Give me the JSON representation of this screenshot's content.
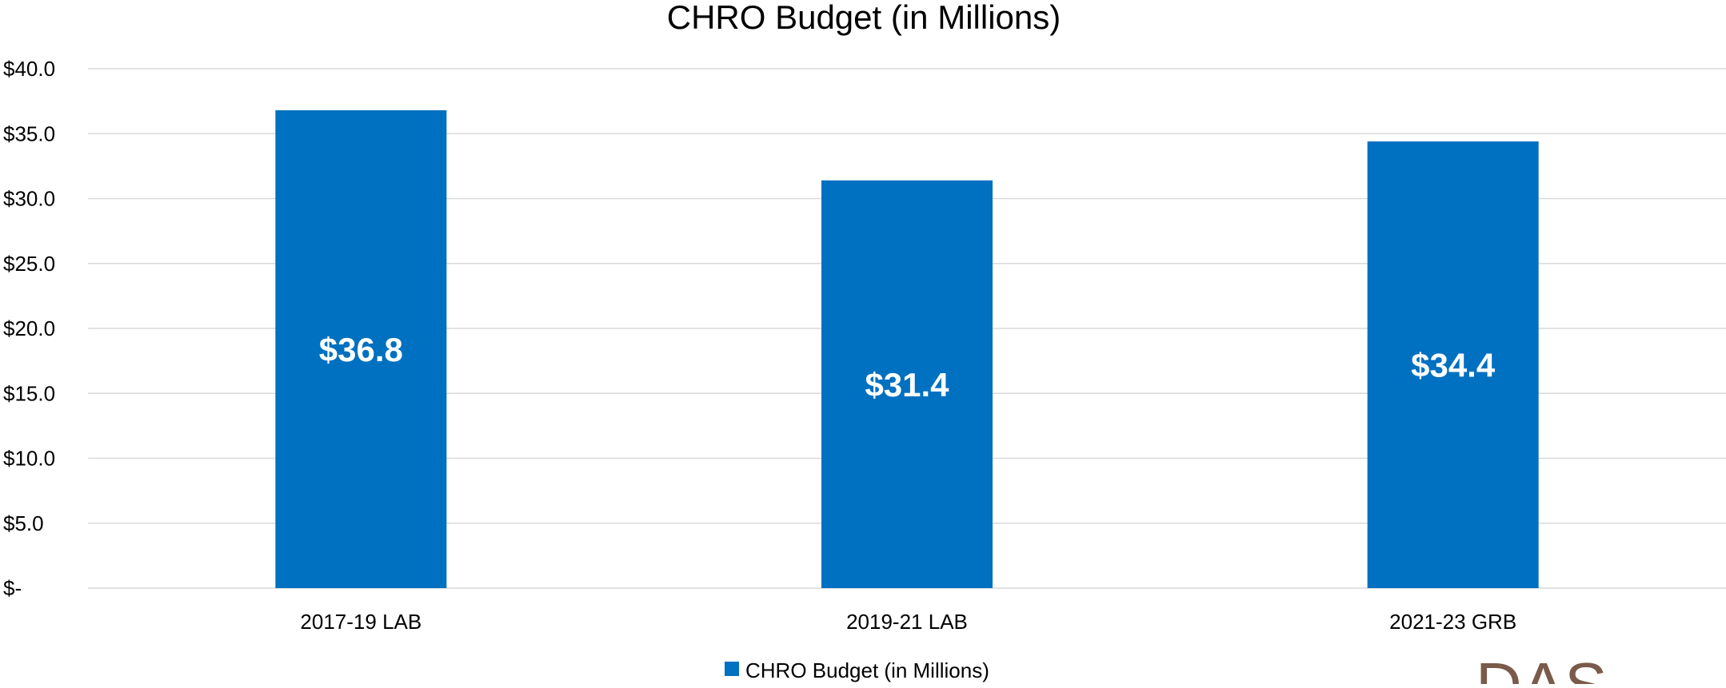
{
  "chart_data": {
    "type": "bar",
    "title": "CHRO Budget (in Millions)",
    "categories": [
      "2017-19 LAB",
      "2019-21 LAB",
      "2021-23 GRB"
    ],
    "series": [
      {
        "name": "CHRO Budget (in Millions)",
        "values": [
          36.8,
          31.4,
          34.4
        ],
        "data_labels": [
          "$36.8",
          "$31.4",
          "$34.4"
        ],
        "color": "#0070C0"
      }
    ],
    "ylim": [
      0,
      40
    ],
    "y_ticks": [
      0,
      5,
      10,
      15,
      20,
      25,
      30,
      35,
      40
    ],
    "y_tick_labels": [
      "$-",
      "$5.0",
      "$10.0",
      "$15.0",
      "$20.0",
      "$25.0",
      "$30.0",
      "$35.0",
      "$40.0"
    ],
    "grid": true,
    "legend": "bottom"
  },
  "colors": {
    "bar": "#0070C0",
    "grid": "#d9d9d9",
    "logo": "#7a5a4a"
  },
  "logo": {
    "text": "DAS"
  }
}
